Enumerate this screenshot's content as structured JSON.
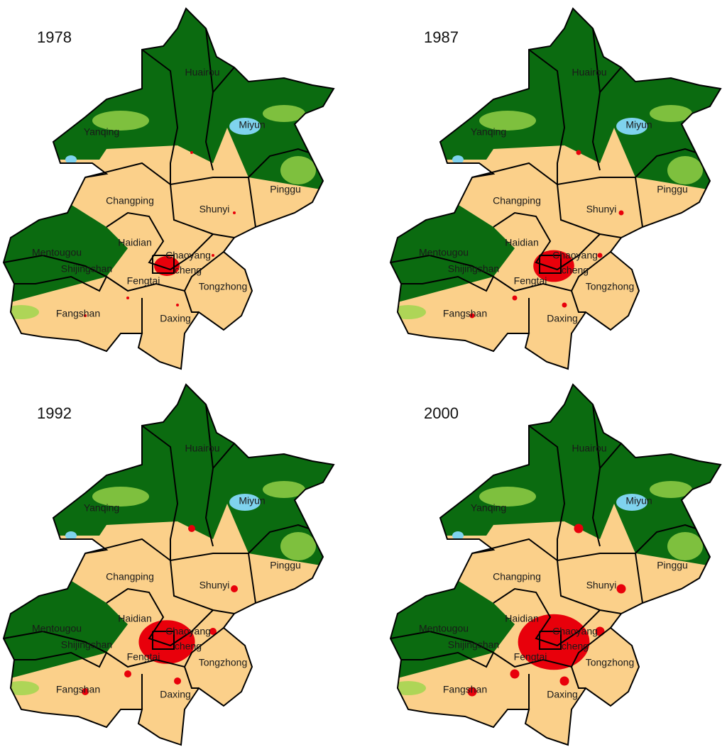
{
  "maps": [
    {
      "year": "1978",
      "districts": [
        "Huairou",
        "Miyun",
        "Yanqing",
        "Pinggu",
        "Changping",
        "Shunyi",
        "Haidian",
        "Chaoyang",
        "Mentougou",
        "Shijingshan",
        "cheng",
        "Fengtai",
        "Tongzhong",
        "Fangshan",
        "Daxing"
      ]
    },
    {
      "year": "1987",
      "districts": [
        "Huairou",
        "Miyun",
        "Yanqing",
        "Pinggu",
        "Changping",
        "Shunyi",
        "Haidian",
        "Chaoyang",
        "Mentougou",
        "Shijingshan",
        "cheng",
        "Fengtai",
        "Tongzhong",
        "Fangshan",
        "Daxing"
      ]
    },
    {
      "year": "1992",
      "districts": [
        "Huairou",
        "Miyun",
        "Yanqing",
        "Pinggu",
        "Changping",
        "Shunyi",
        "Haidian",
        "Chaoyang",
        "Mentougou",
        "Shijingshan",
        "cheng",
        "Fengtai",
        "Tongzhong",
        "Fangshan",
        "Daxing"
      ]
    },
    {
      "year": "2000",
      "districts": [
        "Huairou",
        "Miyun",
        "Yanqing",
        "Pinggu",
        "Changping",
        "Shunyi",
        "Haidian",
        "Chaoyang",
        "Mentougou",
        "Shijingshan",
        "cheng",
        "Fengtai",
        "Tongzhong",
        "Fangshan",
        "Daxing"
      ]
    }
  ]
}
